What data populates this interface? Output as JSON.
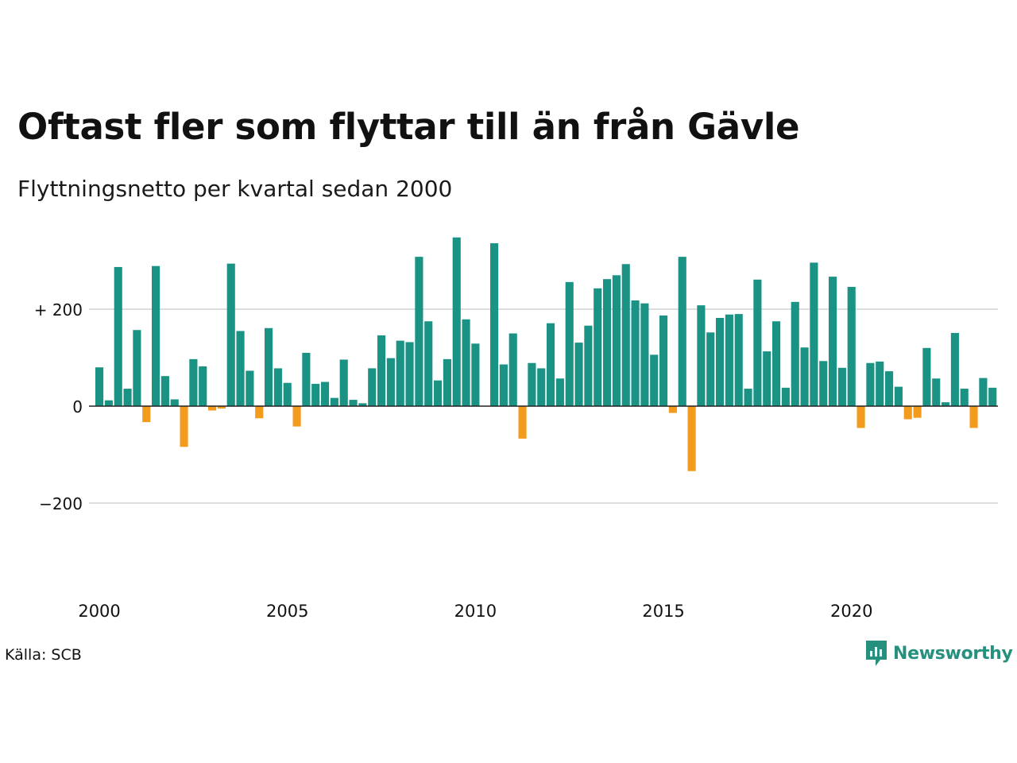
{
  "header": {
    "title": "Oftast fler som flyttar till än från Gävle",
    "subtitle": "Flyttningsnetto per kvartal sedan 2000"
  },
  "footer": {
    "source": "Källa: SCB",
    "brand_name": "Newsworthy",
    "brand_icon": "newsworthy-logo-icon"
  },
  "colors": {
    "positive": "#1a9385",
    "negative": "#f29b1c",
    "grid": "#dddddd",
    "baseline": "#222222",
    "brand": "#26907f"
  },
  "chart_data": {
    "type": "bar",
    "title": "Oftast fler som flyttar till än från Gävle",
    "subtitle": "Flyttningsnetto per kvartal sedan 2000",
    "xlabel": "",
    "ylabel": "",
    "ylim": [
      -320,
      350
    ],
    "grid": true,
    "y_ticks": [
      {
        "value": 200,
        "label": "+ 200"
      },
      {
        "value": 0,
        "label": "0"
      },
      {
        "value": -200,
        "label": "−200"
      }
    ],
    "x_ticks": [
      {
        "value": 2000,
        "label": "2000"
      },
      {
        "value": 2005,
        "label": "2005"
      },
      {
        "value": 2010,
        "label": "2010"
      },
      {
        "value": 2015,
        "label": "2015"
      },
      {
        "value": 2020,
        "label": "2020"
      }
    ],
    "start_year": 2000,
    "values": [
      80,
      12,
      287,
      36,
      157,
      -33,
      289,
      62,
      14,
      -84,
      97,
      82,
      -9,
      -5,
      294,
      155,
      73,
      -25,
      161,
      78,
      48,
      -42,
      110,
      46,
      50,
      17,
      96,
      13,
      6,
      78,
      146,
      99,
      135,
      132,
      308,
      175,
      53,
      97,
      348,
      179,
      129,
      0,
      336,
      86,
      150,
      -67,
      89,
      78,
      171,
      57,
      256,
      131,
      166,
      243,
      262,
      270,
      293,
      218,
      212,
      106,
      187,
      -14,
      308,
      -134,
      208,
      152,
      182,
      189,
      190,
      36,
      261,
      113,
      175,
      38,
      215,
      121,
      296,
      93,
      267,
      79,
      246,
      -45,
      89,
      92,
      72,
      40,
      -27,
      -24,
      120,
      57,
      8,
      151,
      36,
      -45,
      58,
      38
    ]
  }
}
